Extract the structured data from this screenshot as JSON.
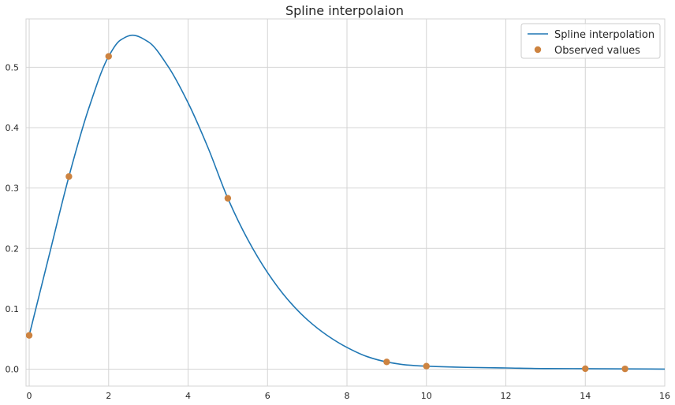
{
  "chart_data": {
    "type": "line",
    "title": "Spline interpolaion",
    "xlabel": "",
    "ylabel": "",
    "xlim": [
      -0.08,
      16
    ],
    "ylim": [
      -0.028,
      0.58
    ],
    "grid": true,
    "legend_position": "top-right",
    "x_ticks": [
      0,
      2,
      4,
      6,
      8,
      10,
      12,
      14,
      16
    ],
    "y_ticks": [
      0.0,
      0.1,
      0.2,
      0.3,
      0.4,
      0.5
    ],
    "x_tick_labels": [
      "0",
      "2",
      "4",
      "6",
      "8",
      "10",
      "12",
      "14",
      "16"
    ],
    "y_tick_labels": [
      "0.0",
      "0.1",
      "0.2",
      "0.3",
      "0.4",
      "0.5"
    ],
    "series": [
      {
        "name": "Spline interpolation",
        "kind": "line",
        "color": "#1f77b4",
        "x": [
          0,
          0.5,
          1,
          1.5,
          2,
          2.3,
          2.6,
          3,
          3.5,
          4,
          4.5,
          5,
          5.5,
          6,
          6.5,
          7,
          7.5,
          8,
          8.5,
          9,
          9.5,
          10,
          11,
          12,
          13,
          14,
          15,
          16
        ],
        "y": [
          0.056,
          0.188,
          0.319,
          0.432,
          0.518,
          0.545,
          0.553,
          0.542,
          0.501,
          0.441,
          0.367,
          0.283,
          0.215,
          0.16,
          0.116,
          0.082,
          0.056,
          0.036,
          0.021,
          0.012,
          0.007,
          0.005,
          0.003,
          0.002,
          0.001,
          0.0008,
          0.0005,
          0.0002
        ]
      },
      {
        "name": "Observed values",
        "kind": "scatter",
        "color": "#cd8340",
        "x": [
          0,
          1,
          2,
          5,
          9,
          10,
          14,
          15
        ],
        "y": [
          0.056,
          0.319,
          0.518,
          0.283,
          0.012,
          0.005,
          0.0008,
          0.0005
        ]
      }
    ]
  }
}
